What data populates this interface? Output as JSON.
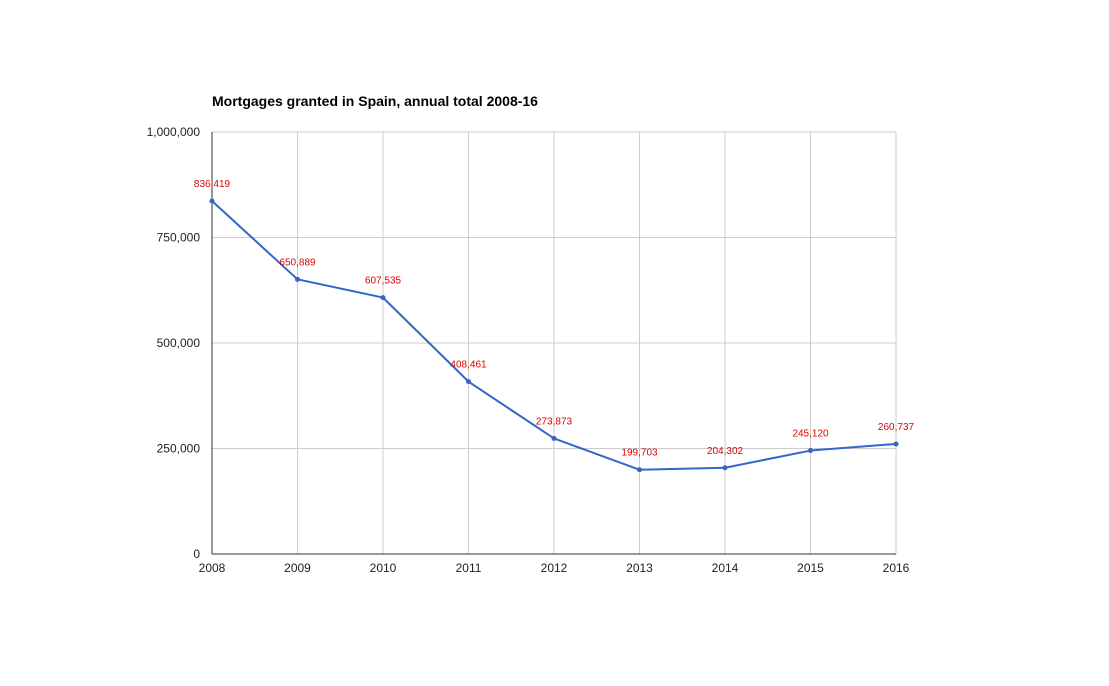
{
  "chart_data": {
    "type": "line",
    "title": "Mortgages granted in Spain, annual total 2008-16",
    "xlabel": "",
    "ylabel": "",
    "categories": [
      "2008",
      "2009",
      "2010",
      "2011",
      "2012",
      "2013",
      "2014",
      "2015",
      "2016"
    ],
    "series": [
      {
        "values": [
          836419,
          650889,
          607535,
          408461,
          273873,
          199703,
          204302,
          245120,
          260737
        ],
        "data_labels": [
          "836,419",
          "650,889",
          "607,535",
          "408,461",
          "273,873",
          "199,703",
          "204,302",
          "245,120",
          "260,737"
        ],
        "color": "#3366cc"
      }
    ],
    "ylim": [
      0,
      1000000
    ],
    "y_ticks": [
      0,
      250000,
      500000,
      750000,
      1000000
    ],
    "y_tick_labels": [
      "0",
      "250,000",
      "500,000",
      "750,000",
      "1,000,000"
    ],
    "grid": true,
    "legend": "none",
    "colors": {
      "line": "#3366cc",
      "data_label": "#e00000",
      "grid": "#cccccc",
      "axis": "#333333"
    }
  }
}
